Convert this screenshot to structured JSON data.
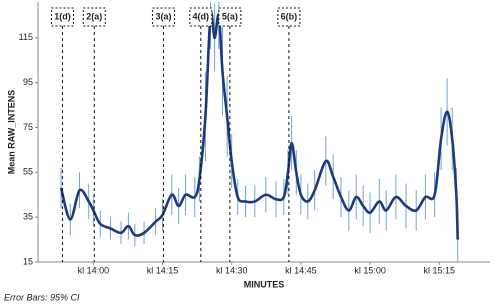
{
  "chart_data": {
    "type": "line",
    "y_label": "Mean RAW_INTENS",
    "x_label": "MINUTES",
    "footnote": "Error Bars: 95% CI",
    "x": [
      -7,
      -5,
      -3,
      -1,
      0,
      1.5,
      3.7,
      6,
      7.6,
      9,
      11,
      13.5,
      15,
      17,
      18.5,
      20,
      22,
      23,
      24.3,
      25.4,
      26.3,
      27.2,
      28,
      29,
      30,
      31.3,
      33,
      35,
      37.4,
      39.6,
      41.3,
      42.2,
      43,
      44,
      45,
      46.5,
      48,
      50.4,
      52,
      53.7,
      55.4,
      57,
      58.5,
      60,
      62,
      63.5,
      65.6,
      67.8,
      70,
      72,
      74,
      75.4,
      76.7,
      77.8,
      78.7,
      79
    ],
    "series": [
      {
        "color": "#1f3a7a",
        "error_color": "#6fa3d9",
        "values": [
          48,
          34,
          47,
          42,
          38,
          32,
          30,
          28,
          31,
          27,
          28,
          33,
          36,
          45,
          40,
          45,
          44,
          52,
          80,
          125,
          115,
          125,
          100,
          80,
          60,
          44,
          42,
          42,
          45,
          43,
          44,
          55,
          68,
          55,
          45,
          42,
          47,
          60,
          53,
          44,
          38,
          44,
          40,
          37,
          42,
          38,
          44,
          40,
          38,
          44,
          45,
          70,
          82,
          70,
          45,
          25
        ],
        "errors": [
          9,
          7,
          8,
          8,
          7,
          6,
          5,
          5,
          6,
          5,
          5,
          6,
          7,
          9,
          8,
          9,
          9,
          10,
          20,
          15,
          15,
          15,
          20,
          18,
          12,
          8,
          7,
          7,
          8,
          8,
          8,
          10,
          12,
          10,
          9,
          8,
          9,
          11,
          10,
          9,
          9,
          10,
          9,
          9,
          10,
          9,
          10,
          10,
          9,
          10,
          10,
          14,
          15,
          14,
          12,
          10
        ]
      }
    ],
    "xlim": [
      -12,
      86
    ],
    "ylim": [
      15,
      131
    ],
    "xticks": [
      {
        "value": 0,
        "label": "kl 14:00"
      },
      {
        "value": 15,
        "label": "kl 14:15"
      },
      {
        "value": 30,
        "label": "kl 14:30"
      },
      {
        "value": 45,
        "label": "kl 14:45"
      },
      {
        "value": 60,
        "label": "kl 15:00"
      },
      {
        "value": 75,
        "label": "kl 15:15"
      }
    ],
    "yticks": [
      15,
      35,
      55,
      75,
      95,
      115
    ],
    "vlines": [
      {
        "label": "1(d)",
        "x": -6.7
      },
      {
        "label": "2(a)",
        "x": 0.2
      },
      {
        "label": "3(a)",
        "x": 15.2
      },
      {
        "label": "4(d)",
        "x": 23.3
      },
      {
        "label": "5(a)",
        "x": 29.6
      },
      {
        "label": "6(b)",
        "x": 42.4
      }
    ]
  }
}
